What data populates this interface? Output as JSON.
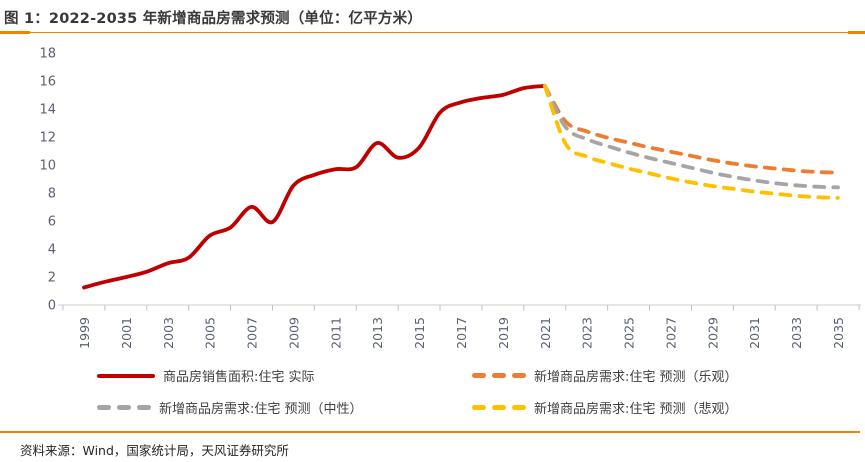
{
  "header": {
    "title": "图 1：2022-2035 年新增商品房需求预测（单位：亿平方米）"
  },
  "footer": {
    "source": "资料来源：Wind，国家统计局，天风证券研究所"
  },
  "colors": {
    "accent_rule": "#F08300",
    "title_text": "#3B3838",
    "axis_label": "#5A6172",
    "axis_line": "#D6D6D6",
    "tick_mark": "#BFBFBF",
    "legend_text": "#404040"
  },
  "chart_data": {
    "type": "line",
    "title": "2022-2035 年新增商品房需求预测",
    "unit": "亿平方米",
    "smooth": true,
    "grid": false,
    "legend_position": "bottom",
    "ylim": [
      0,
      18
    ],
    "y_ticks": [
      0,
      2,
      4,
      6,
      8,
      10,
      12,
      14,
      16,
      18
    ],
    "x": [
      1999,
      2000,
      2001,
      2002,
      2003,
      2004,
      2005,
      2006,
      2007,
      2008,
      2009,
      2010,
      2011,
      2012,
      2013,
      2014,
      2015,
      2016,
      2017,
      2018,
      2019,
      2020,
      2021,
      2022,
      2023,
      2024,
      2025,
      2026,
      2027,
      2028,
      2029,
      2030,
      2031,
      2032,
      2033,
      2034,
      2035
    ],
    "x_tick_labels": [
      "1999",
      "2001",
      "2003",
      "2005",
      "2007",
      "2009",
      "2011",
      "2013",
      "2015",
      "2017",
      "2019",
      "2021",
      "2023",
      "2025",
      "2027",
      "2029",
      "2031",
      "2033",
      "2035"
    ],
    "series": [
      {
        "name": "商品房销售面积:住宅 实际",
        "color": "#C00000",
        "style": "solid",
        "values": [
          1.25,
          1.66,
          1.99,
          2.38,
          2.98,
          3.38,
          4.95,
          5.54,
          7.01,
          5.93,
          8.53,
          9.3,
          9.7,
          9.85,
          11.57,
          10.52,
          11.24,
          13.75,
          14.48,
          14.79,
          15.01,
          15.49,
          15.65,
          null,
          null,
          null,
          null,
          null,
          null,
          null,
          null,
          null,
          null,
          null,
          null,
          null,
          null
        ]
      },
      {
        "name": "新增商品房需求:住宅 预测（乐观）",
        "color": "#ED7D31",
        "style": "dashed",
        "values": [
          null,
          null,
          null,
          null,
          null,
          null,
          null,
          null,
          null,
          null,
          null,
          null,
          null,
          null,
          null,
          null,
          null,
          null,
          null,
          null,
          null,
          null,
          15.65,
          13.1,
          12.4,
          11.95,
          11.6,
          11.25,
          10.95,
          10.65,
          10.35,
          10.1,
          9.9,
          9.75,
          9.6,
          9.5,
          9.45
        ]
      },
      {
        "name": "新增商品房需求:住宅 预测（中性）",
        "color": "#A5A5A5",
        "style": "dashed",
        "values": [
          null,
          null,
          null,
          null,
          null,
          null,
          null,
          null,
          null,
          null,
          null,
          null,
          null,
          null,
          null,
          null,
          null,
          null,
          null,
          null,
          null,
          null,
          15.65,
          12.7,
          11.85,
          11.35,
          10.9,
          10.5,
          10.15,
          9.8,
          9.45,
          9.15,
          8.9,
          8.7,
          8.55,
          8.45,
          8.4
        ]
      },
      {
        "name": "新增商品房需求:住宅 预测（悲观）",
        "color": "#FFC000",
        "style": "dashed",
        "values": [
          null,
          null,
          null,
          null,
          null,
          null,
          null,
          null,
          null,
          null,
          null,
          null,
          null,
          null,
          null,
          null,
          null,
          null,
          null,
          null,
          null,
          null,
          15.65,
          11.5,
          10.6,
          10.15,
          9.75,
          9.4,
          9.05,
          8.75,
          8.5,
          8.3,
          8.1,
          7.95,
          7.8,
          7.7,
          7.65
        ]
      }
    ]
  }
}
